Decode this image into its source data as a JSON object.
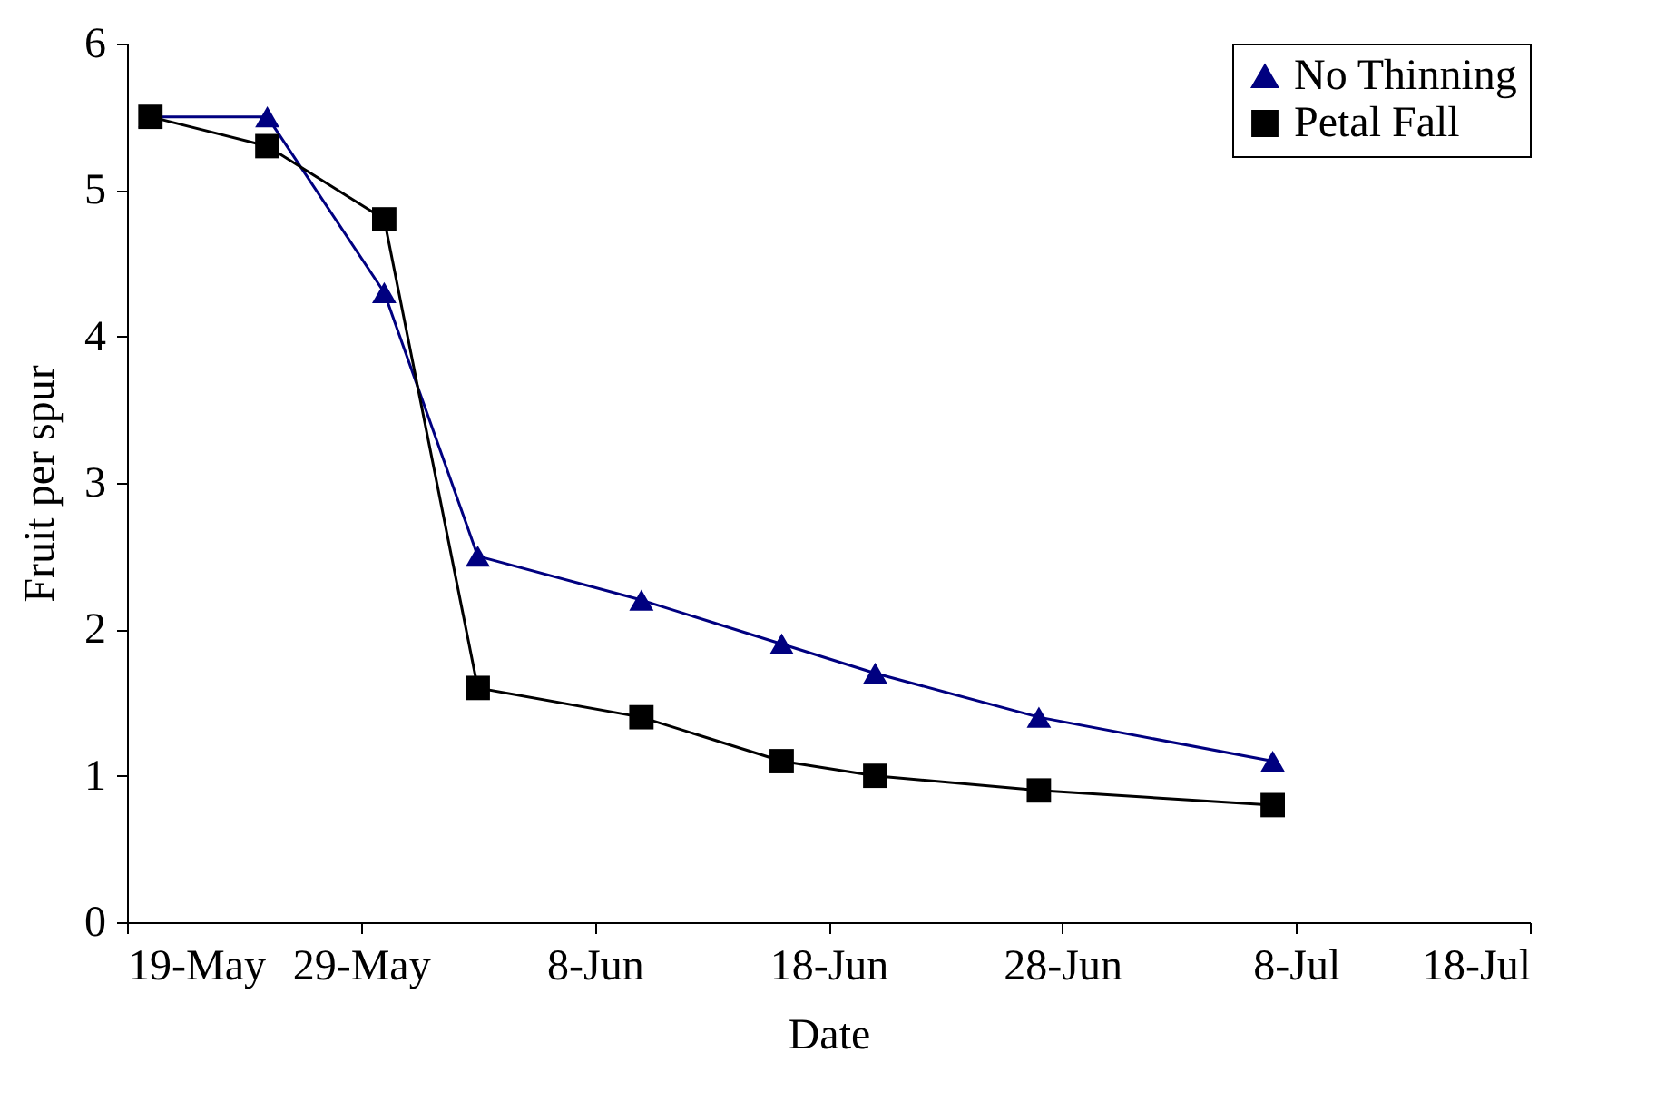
{
  "chart_data": {
    "type": "line",
    "xlabel": "Date",
    "ylabel": "Fruit per spur",
    "x": [
      "--05-20",
      "--05-25",
      "--05-30",
      "--06-03",
      "--06-10",
      "--06-16",
      "--06-20",
      "--06-27",
      "--07-07"
    ],
    "series": [
      {
        "name": "No Thinning",
        "color": "#000080",
        "marker": "triangle",
        "values": [
          5.5,
          5.5,
          4.3,
          2.5,
          2.2,
          1.9,
          1.7,
          1.4,
          1.1
        ]
      },
      {
        "name": "Petal Fall",
        "color": "#000000",
        "marker": "square",
        "values": [
          5.5,
          5.3,
          4.8,
          1.6,
          1.4,
          1.1,
          1.0,
          0.9,
          0.8
        ]
      }
    ],
    "xlim": [
      "--05-19",
      "--07-18"
    ],
    "xticks": [
      {
        "value": "--05-19",
        "label": "19-May"
      },
      {
        "value": "--05-29",
        "label": "29-May"
      },
      {
        "value": "--06-08",
        "label": "8-Jun"
      },
      {
        "value": "--06-18",
        "label": "18-Jun"
      },
      {
        "value": "--06-28",
        "label": "28-Jun"
      },
      {
        "value": "--07-08",
        "label": "8-Jul"
      },
      {
        "value": "--07-18",
        "label": "18-Jul"
      }
    ],
    "ylim": [
      0,
      6
    ],
    "yticks": [
      0,
      1,
      2,
      3,
      4,
      5,
      6
    ],
    "grid": false,
    "legend": "top right"
  }
}
